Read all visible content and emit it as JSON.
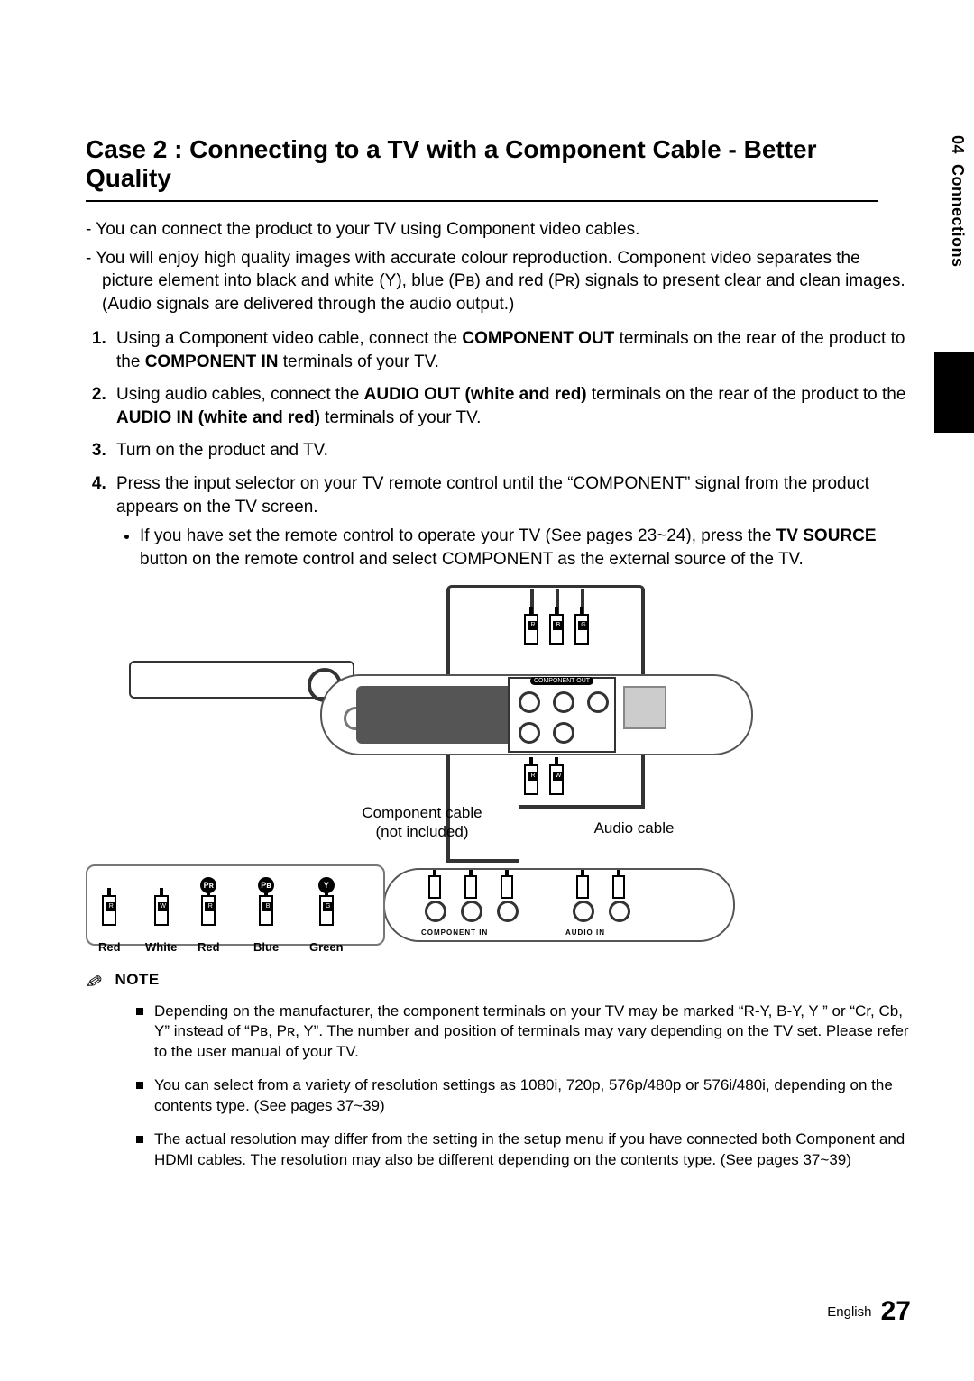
{
  "side": {
    "chapter": "04",
    "title": "Connections"
  },
  "heading": "Case 2 : Connecting to a TV with a Component Cable - Better Quality",
  "intro": [
    "You can connect the product to your TV using Component video cables.",
    "You will enjoy high quality images with accurate colour reproduction. Component video separates the picture element into black and white (Y), blue (Pʙ) and red (Pʀ) signals to present clear and clean images. (Audio signals are delivered through the audio output.)"
  ],
  "steps": {
    "s1_a": "Using a Component video cable, connect the ",
    "s1_b": "COMPONENT OUT",
    "s1_c": " terminals on the rear of the product to the ",
    "s1_d": "COMPONENT IN",
    "s1_e": " terminals of your TV.",
    "s2_a": "Using audio cables, connect the ",
    "s2_b": "AUDIO OUT (white and red)",
    "s2_c": " terminals on the rear of the product to the ",
    "s2_d": "AUDIO IN (white and red)",
    "s2_e": " terminals of your TV.",
    "s3": "Turn on the product and TV.",
    "s4": "Press the input selector on your TV remote control until the “COMPONENT” signal from the product appears on the TV screen.",
    "s4_sub_a": "If you have set the remote control to operate your TV (See pages 23~24), press the ",
    "s4_sub_b": "TV SOURCE",
    "s4_sub_c": " button on the remote control and select COMPONENT as the external source of the TV."
  },
  "diagram": {
    "component_out": "COMPONENT OUT",
    "comp_cable": "Component cable\n(not included)",
    "audio_cable": "Audio cable",
    "component_in": "COMPONENT IN",
    "audio_in": "AUDIO IN",
    "colors": {
      "red": "Red",
      "white": "White",
      "blue": "Blue",
      "green": "Green"
    },
    "tags": {
      "r": "R",
      "w": "W",
      "b": "B",
      "g": "G",
      "pr": "Pʀ",
      "pb": "Pʙ",
      "y": "Y"
    }
  },
  "note_label": "NOTE",
  "notes": [
    "Depending on the manufacturer, the component terminals on your TV may be marked “R-Y, B-Y, Y ” or “Cr, Cb, Y” instead of “Pʙ, Pʀ, Y”. The number and position of terminals may vary depending on the TV set. Please refer to the user manual of your TV.",
    "You can select from a variety of resolution settings as 1080i, 720p, 576p/480p or 576i/480i, depending on the contents type. (See pages 37~39)",
    "The actual resolution may differ from the setting in the setup menu if you have connected both Component and HDMI cables. The resolution may also be different depending on the contents type. (See pages 37~39)"
  ],
  "footer": {
    "lang": "English",
    "page": "27"
  }
}
